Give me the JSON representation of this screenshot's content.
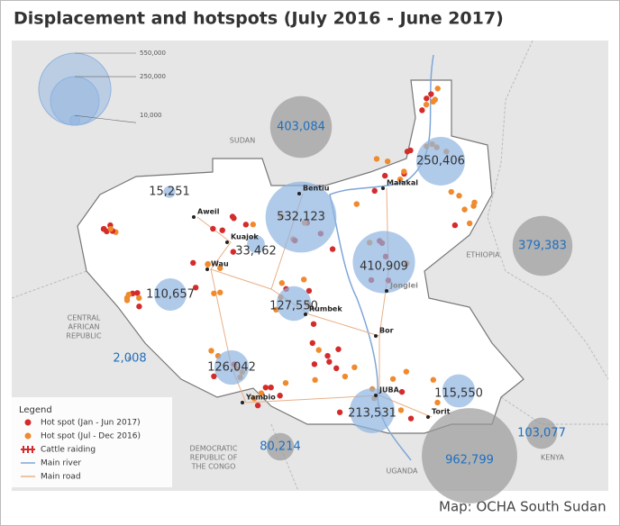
{
  "title": "Displacement and hotspots (July 2016 - June 2017)",
  "size_legend": [
    {
      "value": 550000,
      "label": "550,000"
    },
    {
      "value": 250000,
      "label": "250,000"
    },
    {
      "value": 10000,
      "label": "10,000"
    }
  ],
  "bubbles": [
    {
      "value": 403084,
      "label": "403,084",
      "color": "#9a9a9a"
    },
    {
      "value": 250406,
      "label": "250,406",
      "color": "#8fb3e0"
    },
    {
      "value": 15251,
      "label": "15,251",
      "color": "#8fb3e0"
    },
    {
      "value": 532123,
      "label": "532,123",
      "color": "#8fb3e0"
    },
    {
      "value": 33462,
      "label": "33,462",
      "color": "#8fb3e0"
    },
    {
      "value": 379383,
      "label": "379,383",
      "color": "#9a9a9a"
    },
    {
      "value": 410909,
      "label": "410,909",
      "color": "#8fb3e0"
    },
    {
      "value": 110657,
      "label": "110,657",
      "color": "#8fb3e0"
    },
    {
      "value": 127550,
      "label": "127,550",
      "color": "#8fb3e0"
    },
    {
      "value": 2008,
      "label": "2,008",
      "color": "#9a9a9a"
    },
    {
      "value": 126042,
      "label": "126,042",
      "color": "#8fb3e0"
    },
    {
      "value": 115550,
      "label": "115,550",
      "color": "#8fb3e0"
    },
    {
      "value": 213531,
      "label": "213,531",
      "color": "#8fb3e0"
    },
    {
      "value": 103077,
      "label": "103,077",
      "color": "#9a9a9a"
    },
    {
      "value": 80214,
      "label": "80,214",
      "color": "#9a9a9a"
    },
    {
      "value": 962799,
      "label": "962,799",
      "color": "#9a9a9a"
    }
  ],
  "countries": [
    [
      "SUDAN"
    ],
    [
      "ETHIOPIA"
    ],
    [
      "CENTRAL",
      "AFRICAN",
      "REPUBLIC"
    ],
    [
      "DEMOCRATIC",
      "REPUBLIC OF",
      "THE CONGO"
    ],
    [
      "UGANDA"
    ],
    [
      "KENYA"
    ]
  ],
  "towns": [
    "Aweil",
    "Kuajok",
    "Wau",
    "Bentiu",
    "Malakal",
    "Rumbek",
    "Bor",
    "Jonglei",
    "Yambio",
    "JUBA",
    "Torit"
  ],
  "legend": {
    "title": "Legend",
    "items": [
      "Hot spot (Jan - Jun 2017)",
      "Hot spot (Jul - Dec 2016)",
      "Cattle raiding",
      "Main river",
      "Main road"
    ]
  },
  "credit": "Map: OCHA South Sudan"
}
